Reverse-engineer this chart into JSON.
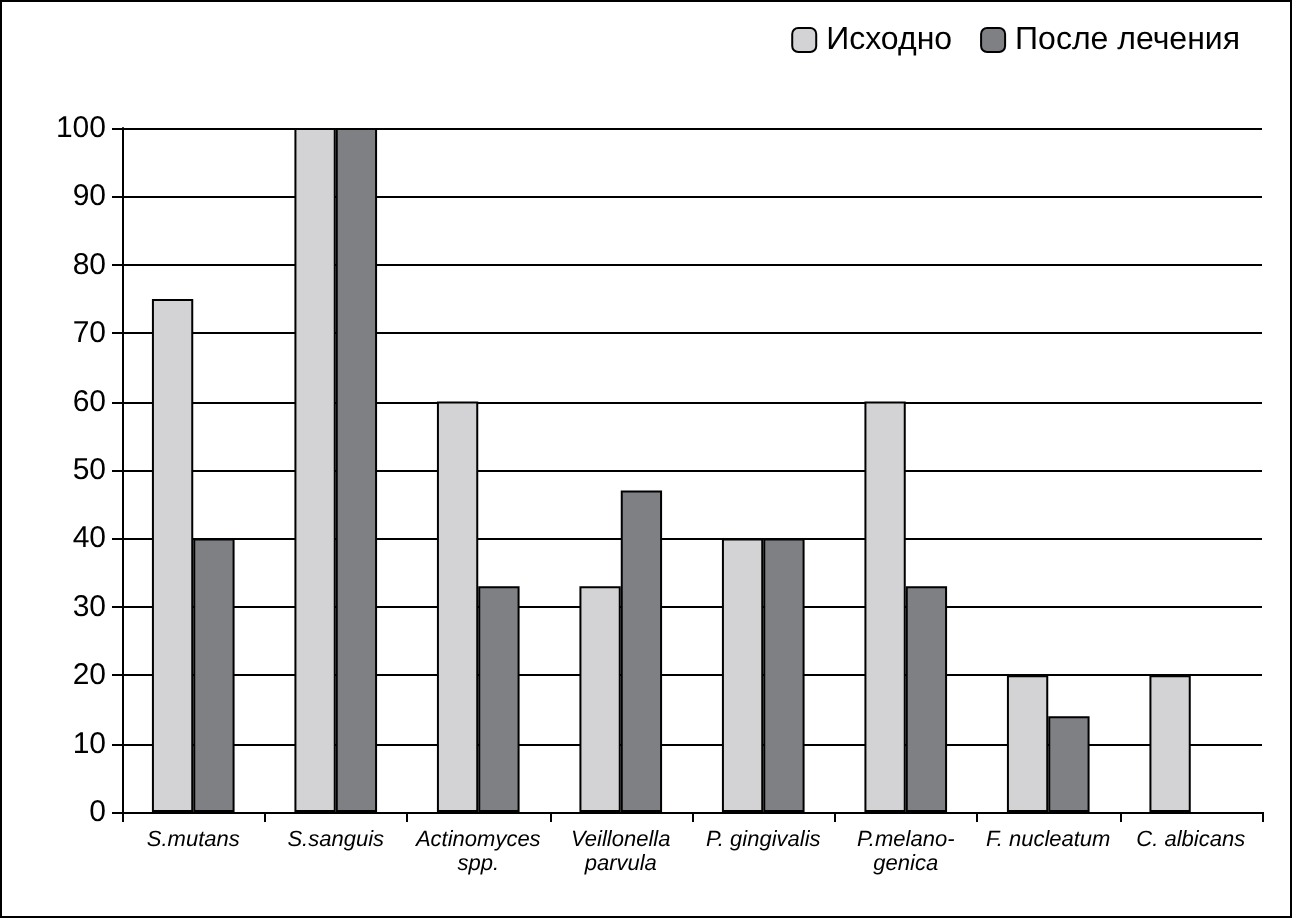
{
  "chart_data": {
    "type": "bar",
    "categories": [
      "S.mutans",
      "S.sanguis",
      "Actinomyces\nspp.",
      "Veillonella\nparvula",
      "P. gingivalis",
      "P.melano-\ngenica",
      "F. nucleatum",
      "C. albicans"
    ],
    "series": [
      {
        "name": "Исходно",
        "color": "#d3d3d5",
        "values": [
          75,
          100,
          60,
          33,
          40,
          60,
          20,
          20
        ]
      },
      {
        "name": "После лечения",
        "color": "#7f8084",
        "values": [
          40,
          100,
          33,
          47,
          40,
          33,
          14,
          null
        ]
      }
    ],
    "ylim": [
      0,
      100
    ],
    "yticks": [
      0,
      10,
      20,
      30,
      40,
      50,
      60,
      70,
      80,
      90,
      100
    ],
    "grid": "y",
    "legend": "top right"
  }
}
